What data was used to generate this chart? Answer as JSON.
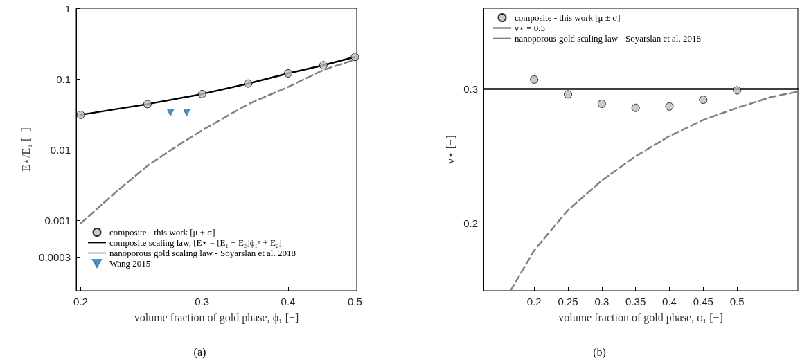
{
  "chart_data": [
    {
      "type": "line",
      "xlabel": "volume fraction of gold phase, ϕ₁ [−]",
      "ylabel": "E⋆/E₁ [−]",
      "log": "xy",
      "grid": false,
      "legend": "bottom left",
      "xlim": [
        0.197,
        0.503
      ],
      "xticks": [
        0.2,
        0.3,
        0.4,
        0.5
      ],
      "ylim": [
        0.0001,
        1
      ],
      "yticks": [
        0.0003,
        0.001,
        0.01,
        0.1,
        1
      ],
      "annotations": [
        "(a)"
      ],
      "series": [
        {
          "name": "composite - this work [μ ± σ]",
          "type": "scatter",
          "marker": "circle",
          "color": "#bdbdbd",
          "x": [
            0.2,
            0.25,
            0.3,
            0.35,
            0.4,
            0.45,
            0.5
          ],
          "values": [
            0.031,
            0.044,
            0.061,
            0.086,
            0.12,
            0.156,
            0.205
          ]
        },
        {
          "name": "composite scaling law, [E⋆ = [E₁ − E₂]ϕ₁ⁿ + E₂]",
          "marker": "none",
          "line_style": "solid",
          "color": "#000000",
          "x": [
            0.2,
            0.25,
            0.3,
            0.35,
            0.4,
            0.45,
            0.5
          ],
          "values": [
            0.031,
            0.044,
            0.061,
            0.086,
            0.12,
            0.156,
            0.205
          ]
        },
        {
          "name": "nanoporous gold scaling law - Soyarslan et al. 2018",
          "marker": "none",
          "line_style": "dashed",
          "color": "#808080",
          "x": [
            0.2,
            0.225,
            0.25,
            0.275,
            0.3,
            0.35,
            0.4,
            0.45,
            0.5
          ],
          "values": [
            0.0009,
            0.0025,
            0.0059,
            0.011,
            0.0187,
            0.044,
            0.077,
            0.134,
            0.187
          ]
        },
        {
          "name": "Wang 2015",
          "type": "scatter",
          "marker": "triangle",
          "color": "#1f77b4",
          "x": [
            0.27,
            0.285
          ],
          "values": [
            0.033,
            0.033
          ]
        }
      ]
    },
    {
      "type": "line",
      "xlabel": "volume fraction of gold phase, ϕ₁ [−]",
      "ylabel": "ν⋆ [−]",
      "grid": false,
      "legend": "top left",
      "xlim": [
        0.125,
        0.59
      ],
      "xticks": [
        0.2,
        0.25,
        0.3,
        0.35,
        0.4,
        0.45,
        0.5
      ],
      "ylim": [
        0.15,
        0.36
      ],
      "yticks": [
        0.2,
        0.3
      ],
      "annotations": [
        "(b)"
      ],
      "series": [
        {
          "name": "composite - this work [μ ± σ]",
          "type": "scatter",
          "marker": "circle",
          "color": "#bdbdbd",
          "x": [
            0.2,
            0.25,
            0.3,
            0.35,
            0.4,
            0.45,
            0.5
          ],
          "values": [
            0.307,
            0.296,
            0.289,
            0.286,
            0.287,
            0.292,
            0.299
          ]
        },
        {
          "name": "ν⋆ = 0.3",
          "marker": "none",
          "line_style": "solid",
          "color": "#000000",
          "x": [
            0.125,
            0.59
          ],
          "values": [
            0.3,
            0.3
          ]
        },
        {
          "name": "nanoporous gold scaling law - Soyarslan et al. 2018",
          "marker": "none",
          "line_style": "dashed",
          "color": "#808080",
          "x": [
            0.165,
            0.2,
            0.25,
            0.3,
            0.35,
            0.4,
            0.45,
            0.5,
            0.55,
            0.59
          ],
          "values": [
            0.15,
            0.18,
            0.21,
            0.232,
            0.25,
            0.265,
            0.277,
            0.286,
            0.294,
            0.298
          ]
        }
      ]
    }
  ]
}
